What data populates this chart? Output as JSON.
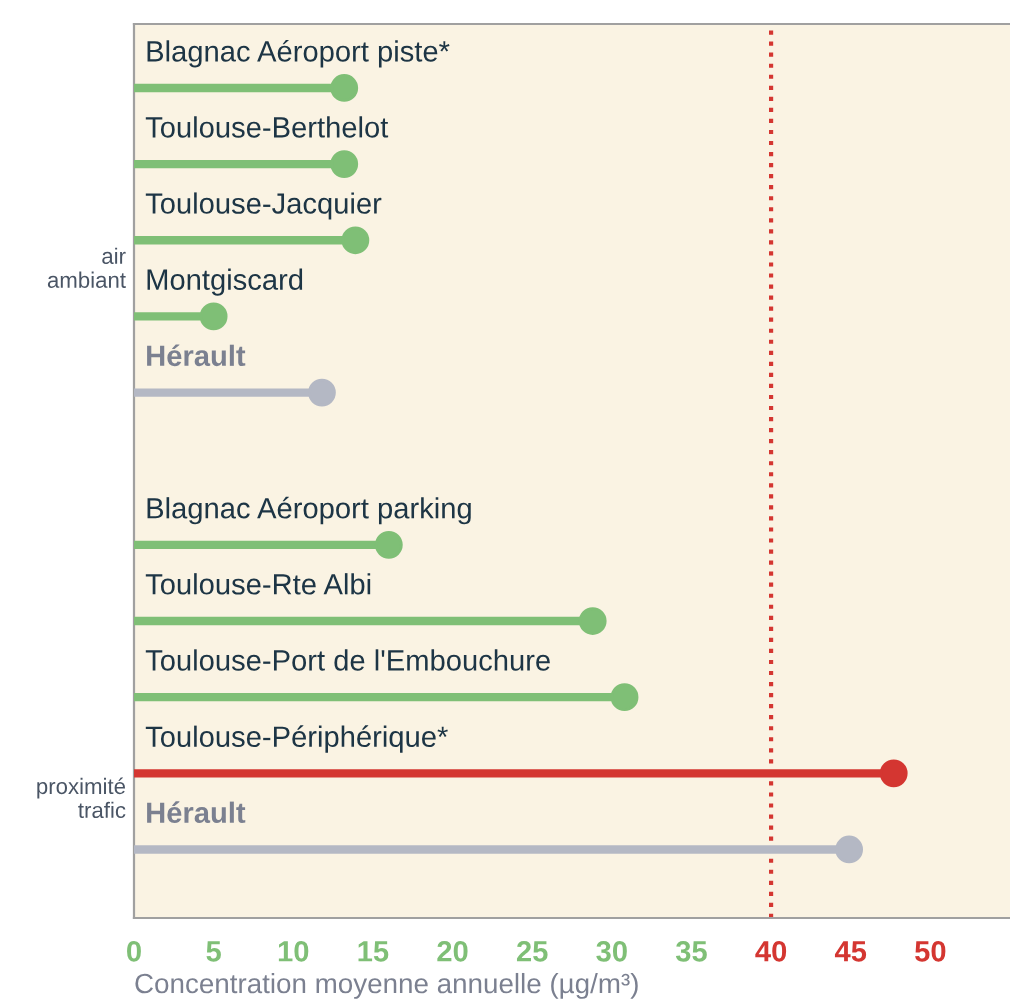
{
  "chart_data": {
    "type": "lollipop",
    "orientation": "horizontal",
    "xlabel": "Concentration moyenne annuelle (µg/m³)",
    "categories": [
      "Blagnac Aéroport piste*",
      "Toulouse-Berthelot",
      "Toulouse-Jacquier",
      "Montgiscard",
      "Hérault",
      null,
      "Blagnac Aéroport parking",
      "Toulouse-Rte Albi",
      "Toulouse-Port de l'Embouchure",
      "Toulouse-Périphérique*",
      "Hérault"
    ],
    "values": [
      13.2,
      13.2,
      13.9,
      5.0,
      11.8,
      null,
      16.0,
      28.8,
      30.8,
      47.7,
      44.9
    ],
    "colors": [
      "#7fbf76",
      "#7fbf76",
      "#7fbf76",
      "#7fbf76",
      "#b4b8c4",
      null,
      "#7fbf76",
      "#7fbf76",
      "#7fbf76",
      "#d43631",
      "#b4b8c4"
    ],
    "xlim": [
      0,
      55
    ],
    "xticks": [
      0,
      5,
      10,
      15,
      20,
      25,
      30,
      35,
      40,
      45,
      50
    ],
    "ref_lines": [
      {
        "axis": "x",
        "value": 40,
        "color": "#d43631",
        "line_style": "dotted"
      }
    ],
    "annotations": [
      "air\nambiant",
      "proximité\ntrafic"
    ],
    "grid": false,
    "legend": false,
    "marker": "circle"
  }
}
